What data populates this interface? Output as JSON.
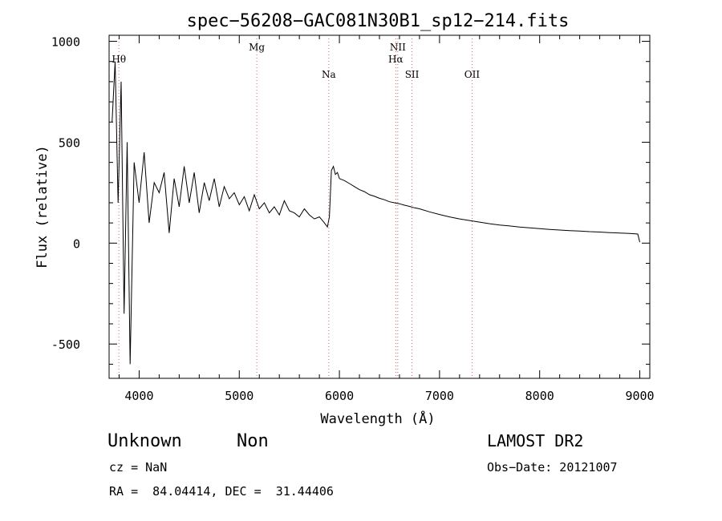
{
  "chart_data": {
    "type": "line",
    "title": "spec−56208−GAC081N30B1_sp12−214.fits",
    "xlabel": "Wavelength (Å)",
    "ylabel": "Flux (relative)",
    "xlim": [
      3700,
      9100
    ],
    "ylim": [
      -670,
      1030
    ],
    "xticks": [
      4000,
      5000,
      6000,
      7000,
      8000,
      9000
    ],
    "yticks": [
      -500,
      0,
      500,
      1000
    ],
    "grid": false,
    "line_color": "#000000",
    "marker_color": "#e06060",
    "series": [
      {
        "x": [
          3730,
          3760,
          3790,
          3820,
          3850,
          3880,
          3910,
          3950,
          4000,
          4050,
          4100,
          4150,
          4200,
          4250,
          4300,
          4350,
          4400,
          4450,
          4500,
          4550,
          4600,
          4650,
          4700,
          4750,
          4800,
          4850,
          4900,
          4950,
          5000,
          5050,
          5100,
          5150,
          5200,
          5250,
          5300,
          5350,
          5400,
          5450,
          5500,
          5550,
          5600,
          5650,
          5700,
          5750,
          5800,
          5850,
          5880,
          5900,
          5920,
          5940,
          5960,
          5980,
          6000,
          6050,
          6100,
          6150,
          6200,
          6250,
          6300,
          6350,
          6400,
          6450,
          6500,
          6550,
          6600,
          6650,
          6700,
          6750,
          6800,
          6900,
          7000,
          7100,
          7200,
          7300,
          7400,
          7500,
          7600,
          7700,
          7800,
          7900,
          8000,
          8100,
          8200,
          8300,
          8400,
          8500,
          8600,
          8700,
          8800,
          8900,
          8980,
          9000
        ],
        "y": [
          600,
          900,
          200,
          800,
          -350,
          500,
          -600,
          400,
          200,
          450,
          100,
          300,
          250,
          350,
          50,
          320,
          180,
          380,
          200,
          350,
          150,
          300,
          210,
          320,
          180,
          280,
          220,
          250,
          190,
          230,
          160,
          240,
          170,
          200,
          150,
          180,
          140,
          210,
          160,
          150,
          130,
          170,
          140,
          120,
          130,
          100,
          80,
          130,
          360,
          380,
          340,
          350,
          320,
          310,
          295,
          280,
          265,
          255,
          240,
          232,
          222,
          215,
          205,
          200,
          195,
          188,
          182,
          175,
          170,
          155,
          142,
          130,
          120,
          112,
          104,
          96,
          90,
          85,
          80,
          76,
          72,
          68,
          65,
          62,
          60,
          57,
          55,
          52,
          50,
          48,
          45,
          5
        ]
      }
    ],
    "line_markers": [
      {
        "label": "Hθ",
        "x": 3798
      },
      {
        "label": "Mg",
        "x": 5175
      },
      {
        "label": "Na",
        "x": 5894
      },
      {
        "label": "NII",
        "x": 6583
      },
      {
        "label": "Hα",
        "x": 6563
      },
      {
        "label": "SII",
        "x": 6725
      },
      {
        "label": "OII",
        "x": 7325
      }
    ]
  },
  "info": {
    "class": "Unknown",
    "subclass": "Non",
    "survey": "LAMOST DR2",
    "cz": "cz = NaN",
    "obs_date": "Obs−Date: 20121007",
    "coords": "RA =  84.04414, DEC =  31.44406"
  }
}
